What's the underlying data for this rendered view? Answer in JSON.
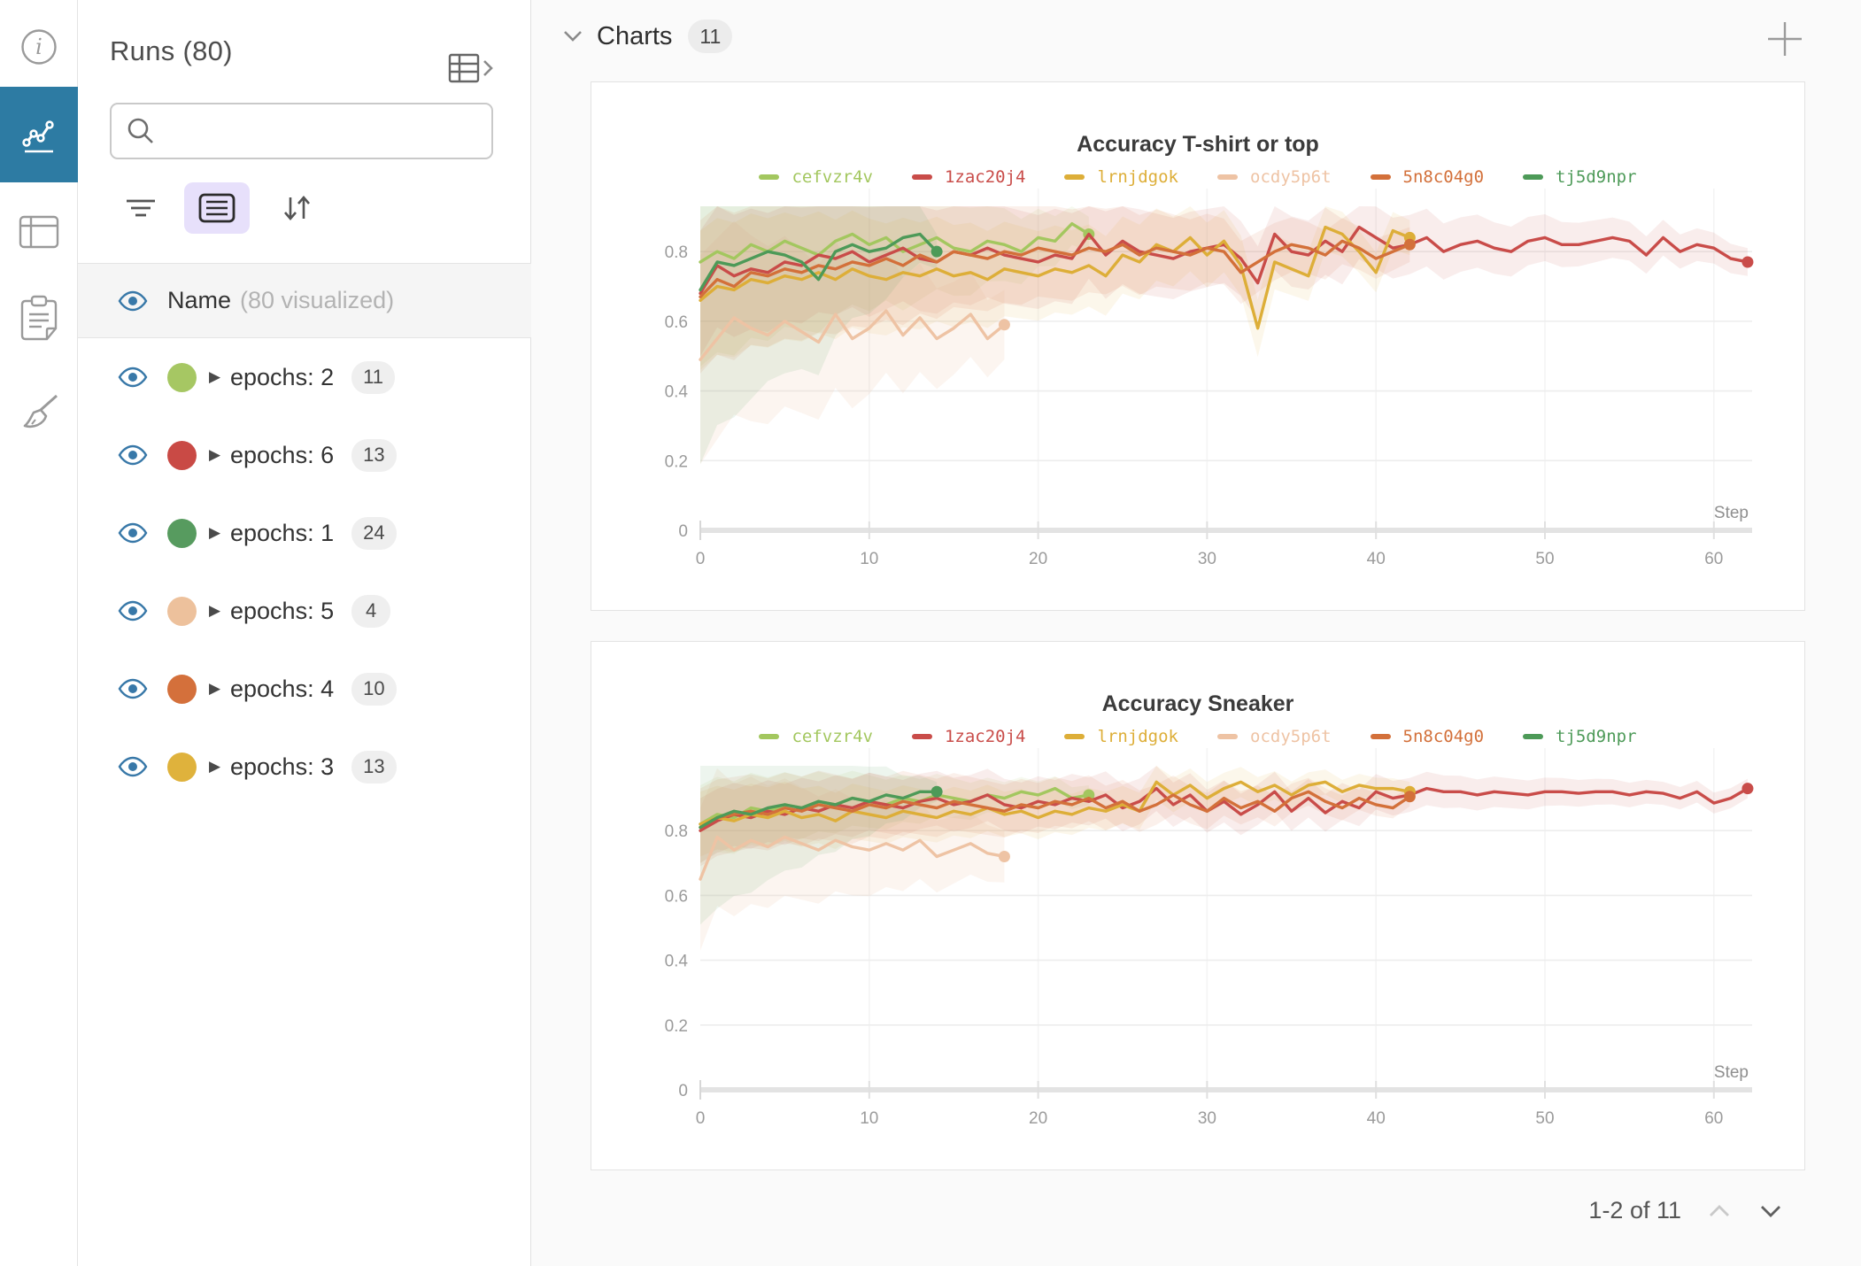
{
  "colors": {
    "accent_blue": "#2d7ba3",
    "eye_blue": "#3878a8",
    "list_tile_bg": "#e7e0fb",
    "badge_bg": "#efefef",
    "charts_bg": "#fafafa"
  },
  "rail": {
    "items": [
      {
        "icon": "info-icon",
        "active": false
      },
      {
        "icon": "workspace-charts-icon",
        "active": true
      },
      {
        "icon": "runs-table-icon",
        "active": false
      },
      {
        "icon": "notes-icon",
        "active": false
      },
      {
        "icon": "sweep-brush-icon",
        "active": false
      }
    ]
  },
  "runs_panel": {
    "title": "Runs (80)",
    "search": {
      "value": "",
      "placeholder": ""
    },
    "list_header": {
      "name": "Name",
      "visualized": "(80 visualized)"
    },
    "rows": [
      {
        "color": "#a6c763",
        "label": "epochs: 2",
        "count": "11"
      },
      {
        "color": "#c94a45",
        "label": "epochs: 6",
        "count": "13"
      },
      {
        "color": "#579b5f",
        "label": "epochs: 1",
        "count": "24"
      },
      {
        "color": "#edc19c",
        "label": "epochs: 5",
        "count": "4"
      },
      {
        "color": "#d4703b",
        "label": "epochs: 4",
        "count": "10"
      },
      {
        "color": "#dfb23c",
        "label": "epochs: 3",
        "count": "13"
      }
    ]
  },
  "charts_section": {
    "title": "Charts",
    "count": "11",
    "pagination": {
      "label": "1-2 of 11"
    }
  },
  "chart_data": [
    {
      "type": "line",
      "title": "Accuracy T-shirt or top",
      "xlabel": "Step",
      "ylabel": "",
      "x_ticks": [
        0,
        10,
        20,
        30,
        40,
        50,
        60
      ],
      "y_ticks": [
        0,
        0.2,
        0.4,
        0.6,
        0.8
      ],
      "xlim": [
        0,
        62.5
      ],
      "ylim": [
        0,
        0.93
      ],
      "grid": true,
      "legend_position": "top",
      "series": [
        {
          "name": "cefvzr4v",
          "color": "#a3c75f",
          "spread_start": 0.3,
          "spread_end": 0.05,
          "values": [
            0.77,
            0.8,
            0.78,
            0.82,
            0.8,
            0.83,
            0.81,
            0.79,
            0.83,
            0.85,
            0.82,
            0.84,
            0.8,
            0.82,
            0.84,
            0.81,
            0.8,
            0.83,
            0.82,
            0.8,
            0.84,
            0.83,
            0.88,
            0.85
          ]
        },
        {
          "name": "1zac20j4",
          "color": "#c94c49",
          "spread_start": 0.18,
          "spread_end": 0.04,
          "values": [
            0.68,
            0.76,
            0.73,
            0.75,
            0.74,
            0.77,
            0.76,
            0.79,
            0.78,
            0.8,
            0.77,
            0.79,
            0.81,
            0.78,
            0.77,
            0.8,
            0.79,
            0.81,
            0.79,
            0.78,
            0.77,
            0.79,
            0.78,
            0.85,
            0.79,
            0.83,
            0.8,
            0.79,
            0.78,
            0.8,
            0.81,
            0.82,
            0.78,
            0.71,
            0.85,
            0.8,
            0.79,
            0.83,
            0.8,
            0.87,
            0.84,
            0.81,
            0.82,
            0.84,
            0.8,
            0.82,
            0.83,
            0.81,
            0.8,
            0.83,
            0.84,
            0.82,
            0.82,
            0.83,
            0.84,
            0.83,
            0.79,
            0.84,
            0.8,
            0.82,
            0.81,
            0.78,
            0.77
          ]
        },
        {
          "name": "lrnjdgok",
          "color": "#ddae38",
          "spread_start": 0.2,
          "spread_end": 0.05,
          "values": [
            0.66,
            0.7,
            0.69,
            0.72,
            0.71,
            0.73,
            0.72,
            0.74,
            0.72,
            0.75,
            0.73,
            0.72,
            0.74,
            0.73,
            0.75,
            0.73,
            0.74,
            0.72,
            0.75,
            0.74,
            0.73,
            0.75,
            0.74,
            0.76,
            0.73,
            0.79,
            0.77,
            0.82,
            0.8,
            0.84,
            0.79,
            0.83,
            0.76,
            0.58,
            0.77,
            0.75,
            0.73,
            0.87,
            0.85,
            0.8,
            0.74,
            0.86,
            0.84
          ]
        },
        {
          "name": "ocdy5p6t",
          "color": "#eec3a4",
          "spread_start": 0.3,
          "spread_end": 0.1,
          "values": [
            0.49,
            0.55,
            0.61,
            0.58,
            0.56,
            0.6,
            0.57,
            0.54,
            0.62,
            0.55,
            0.58,
            0.63,
            0.56,
            0.61,
            0.55,
            0.58,
            0.62,
            0.55,
            0.59
          ]
        },
        {
          "name": "5n8c04g0",
          "color": "#d3703a",
          "spread_start": 0.22,
          "spread_end": 0.05,
          "values": [
            0.67,
            0.72,
            0.7,
            0.74,
            0.73,
            0.75,
            0.74,
            0.76,
            0.75,
            0.77,
            0.76,
            0.78,
            0.76,
            0.79,
            0.77,
            0.8,
            0.79,
            0.78,
            0.8,
            0.79,
            0.81,
            0.8,
            0.79,
            0.81,
            0.8,
            0.82,
            0.79,
            0.81,
            0.8,
            0.79,
            0.81,
            0.8,
            0.74,
            0.77,
            0.8,
            0.82,
            0.81,
            0.79,
            0.83,
            0.81,
            0.78,
            0.8,
            0.82
          ]
        },
        {
          "name": "tj5d9npr",
          "color": "#4d9a58",
          "spread_start": 0.5,
          "spread_end": 0.05,
          "values": [
            0.69,
            0.77,
            0.76,
            0.78,
            0.8,
            0.79,
            0.77,
            0.72,
            0.8,
            0.82,
            0.8,
            0.81,
            0.84,
            0.85,
            0.8
          ]
        }
      ]
    },
    {
      "type": "line",
      "title": "Accuracy Sneaker",
      "xlabel": "Step",
      "ylabel": "",
      "x_ticks": [
        0,
        10,
        20,
        30,
        40,
        50,
        60
      ],
      "y_ticks": [
        0,
        0.2,
        0.4,
        0.6,
        0.8
      ],
      "xlim": [
        0,
        62.5
      ],
      "ylim": [
        0,
        1.0
      ],
      "grid": true,
      "legend_position": "top",
      "series": [
        {
          "name": "cefvzr4v",
          "color": "#a3c75f",
          "spread_start": 0.12,
          "spread_end": 0.03,
          "values": [
            0.82,
            0.85,
            0.84,
            0.87,
            0.86,
            0.88,
            0.87,
            0.89,
            0.88,
            0.9,
            0.89,
            0.88,
            0.9,
            0.89,
            0.91,
            0.9,
            0.89,
            0.91,
            0.9,
            0.92,
            0.91,
            0.93,
            0.9,
            0.91
          ]
        },
        {
          "name": "1zac20j4",
          "color": "#c94c49",
          "spread_start": 0.1,
          "spread_end": 0.03,
          "values": [
            0.8,
            0.83,
            0.85,
            0.84,
            0.86,
            0.85,
            0.87,
            0.86,
            0.88,
            0.87,
            0.89,
            0.88,
            0.87,
            0.89,
            0.9,
            0.88,
            0.89,
            0.91,
            0.88,
            0.87,
            0.89,
            0.88,
            0.9,
            0.89,
            0.91,
            0.87,
            0.89,
            0.93,
            0.88,
            0.91,
            0.86,
            0.89,
            0.85,
            0.88,
            0.92,
            0.86,
            0.9,
            0.855,
            0.89,
            0.87,
            0.92,
            0.9,
            0.91,
            0.93,
            0.92,
            0.92,
            0.91,
            0.92,
            0.915,
            0.91,
            0.92,
            0.92,
            0.915,
            0.92,
            0.92,
            0.91,
            0.92,
            0.915,
            0.9,
            0.92,
            0.885,
            0.9,
            0.93
          ]
        },
        {
          "name": "lrnjdgok",
          "color": "#ddae38",
          "spread_start": 0.1,
          "spread_end": 0.03,
          "values": [
            0.82,
            0.84,
            0.83,
            0.85,
            0.84,
            0.86,
            0.84,
            0.85,
            0.83,
            0.86,
            0.85,
            0.84,
            0.86,
            0.85,
            0.84,
            0.86,
            0.85,
            0.87,
            0.85,
            0.86,
            0.84,
            0.86,
            0.85,
            0.87,
            0.86,
            0.88,
            0.86,
            0.95,
            0.91,
            0.94,
            0.9,
            0.93,
            0.95,
            0.92,
            0.94,
            0.91,
            0.94,
            0.95,
            0.92,
            0.94,
            0.93,
            0.93,
            0.92
          ]
        },
        {
          "name": "ocdy5p6t",
          "color": "#eec3a4",
          "spread_start": 0.22,
          "spread_end": 0.08,
          "values": [
            0.65,
            0.78,
            0.74,
            0.77,
            0.75,
            0.78,
            0.76,
            0.74,
            0.77,
            0.75,
            0.74,
            0.76,
            0.74,
            0.77,
            0.72,
            0.74,
            0.76,
            0.73,
            0.72
          ]
        },
        {
          "name": "5n8c04g0",
          "color": "#d3703a",
          "spread_start": 0.12,
          "spread_end": 0.03,
          "values": [
            0.81,
            0.84,
            0.85,
            0.86,
            0.85,
            0.87,
            0.86,
            0.88,
            0.87,
            0.86,
            0.88,
            0.87,
            0.89,
            0.88,
            0.87,
            0.89,
            0.88,
            0.87,
            0.86,
            0.88,
            0.87,
            0.89,
            0.88,
            0.9,
            0.87,
            0.89,
            0.86,
            0.88,
            0.91,
            0.88,
            0.86,
            0.9,
            0.87,
            0.89,
            0.86,
            0.9,
            0.92,
            0.89,
            0.87,
            0.9,
            0.88,
            0.87,
            0.905
          ]
        },
        {
          "name": "tj5d9npr",
          "color": "#4d9a58",
          "spread_start": 0.3,
          "spread_end": 0.03,
          "values": [
            0.81,
            0.84,
            0.86,
            0.85,
            0.87,
            0.88,
            0.87,
            0.89,
            0.88,
            0.9,
            0.89,
            0.91,
            0.9,
            0.92,
            0.92
          ]
        }
      ]
    }
  ]
}
